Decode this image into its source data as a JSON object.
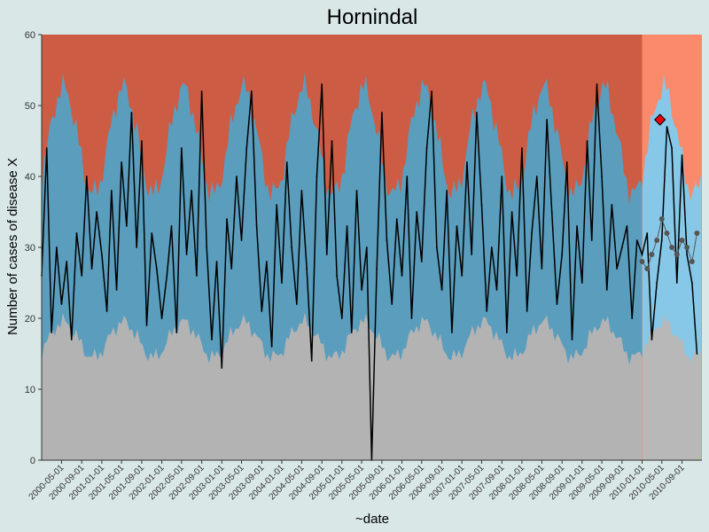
{
  "chart_data": {
    "type": "line",
    "title": "Hornindal",
    "xlabel": "~date",
    "ylabel": "Number of cases of disease X",
    "ylim": [
      0,
      60
    ],
    "yticks": [
      0,
      10,
      20,
      30,
      40,
      50,
      60
    ],
    "xlim": [
      "2000-01-01",
      "2010-12-31"
    ],
    "forecast_start": "2010-01-01",
    "xticks": [
      "2000-05-01",
      "2000-09-01",
      "2001-01-01",
      "2001-05-01",
      "2001-09-01",
      "2002-01-01",
      "2002-05-01",
      "2002-09-01",
      "2003-01-01",
      "2003-05-01",
      "2003-09-01",
      "2004-01-01",
      "2004-05-01",
      "2004-09-01",
      "2005-01-01",
      "2005-05-01",
      "2005-09-01",
      "2006-01-01",
      "2006-05-01",
      "2006-09-01",
      "2007-01-01",
      "2007-05-01",
      "2007-09-01",
      "2008-01-01",
      "2008-05-01",
      "2008-09-01",
      "2009-01-01",
      "2009-05-01",
      "2009-09-01",
      "2010-01-01",
      "2010-05-01",
      "2010-09-01"
    ],
    "colors": {
      "background": "#d9e7e7",
      "low_band": "#b3b3b3",
      "normal_band": "#5a9dbd",
      "high_band": "#cd5c44",
      "forecast_low_band": "#b8b8b8",
      "forecast_normal_band": "#87c8e8",
      "forecast_high_band": "#f98b6c",
      "observed_line": "#000000",
      "baseline_points": "#555555",
      "alert_marker": "#e8000b"
    },
    "series": [
      {
        "role": "observed",
        "x": [
          "2000-01-01",
          "2000-02-01",
          "2000-03-01",
          "2000-04-01",
          "2000-05-01",
          "2000-06-01",
          "2000-07-01",
          "2000-08-01",
          "2000-09-01",
          "2000-10-01",
          "2000-11-01",
          "2000-12-01",
          "2001-01-01",
          "2001-02-01",
          "2001-03-01",
          "2001-04-01",
          "2001-05-01",
          "2001-06-01",
          "2001-07-01",
          "2001-08-01",
          "2001-09-01",
          "2001-10-01",
          "2001-11-01",
          "2001-12-01",
          "2002-01-01",
          "2002-02-01",
          "2002-03-01",
          "2002-04-01",
          "2002-05-01",
          "2002-06-01",
          "2002-07-01",
          "2002-08-01",
          "2002-09-01",
          "2002-10-01",
          "2002-11-01",
          "2002-12-01",
          "2003-01-01",
          "2003-02-01",
          "2003-03-01",
          "2003-04-01",
          "2003-05-01",
          "2003-06-01",
          "2003-07-01",
          "2003-08-01",
          "2003-09-01",
          "2003-10-01",
          "2003-11-01",
          "2003-12-01",
          "2004-01-01",
          "2004-02-01",
          "2004-03-01",
          "2004-04-01",
          "2004-05-01",
          "2004-06-01",
          "2004-07-01",
          "2004-08-01",
          "2004-09-01",
          "2004-10-01",
          "2004-11-01",
          "2004-12-01",
          "2005-01-01",
          "2005-02-01",
          "2005-03-01",
          "2005-04-01",
          "2005-05-01",
          "2005-06-01",
          "2005-07-01",
          "2005-08-01",
          "2005-09-01",
          "2005-10-01",
          "2005-11-01",
          "2005-12-01",
          "2006-01-01",
          "2006-02-01",
          "2006-03-01",
          "2006-04-01",
          "2006-05-01",
          "2006-06-01",
          "2006-07-01",
          "2006-08-01",
          "2006-09-01",
          "2006-10-01",
          "2006-11-01",
          "2006-12-01",
          "2007-01-01",
          "2007-02-01",
          "2007-03-01",
          "2007-04-01",
          "2007-05-01",
          "2007-06-01",
          "2007-07-01",
          "2007-08-01",
          "2007-09-01",
          "2007-10-01",
          "2007-11-01",
          "2007-12-01",
          "2008-01-01",
          "2008-02-01",
          "2008-03-01",
          "2008-04-01",
          "2008-05-01",
          "2008-06-01",
          "2008-07-01",
          "2008-08-01",
          "2008-09-01",
          "2008-10-01",
          "2008-11-01",
          "2008-12-01",
          "2009-01-01",
          "2009-02-01",
          "2009-03-01",
          "2009-04-01",
          "2009-05-01",
          "2009-06-01",
          "2009-07-01",
          "2009-08-01",
          "2009-09-01",
          "2009-10-01",
          "2009-11-01",
          "2009-12-01",
          "2010-01-01",
          "2010-02-01",
          "2010-03-01",
          "2010-04-01",
          "2010-05-01",
          "2010-06-01",
          "2010-07-01",
          "2010-08-01",
          "2010-09-01",
          "2010-10-01",
          "2010-11-01",
          "2010-12-01"
        ],
        "y": [
          26,
          44,
          18,
          30,
          22,
          28,
          17,
          32,
          26,
          40,
          27,
          35,
          29,
          21,
          38,
          24,
          42,
          33,
          49,
          30,
          45,
          19,
          32,
          27,
          20,
          26,
          33,
          18,
          44,
          29,
          38,
          26,
          52,
          30,
          17,
          28,
          13,
          34,
          27,
          40,
          31,
          44,
          52,
          33,
          21,
          28,
          16,
          36,
          25,
          42,
          30,
          22,
          38,
          27,
          14,
          40,
          53,
          29,
          45,
          26,
          20,
          33,
          18,
          38,
          24,
          30,
          0,
          27,
          49,
          31,
          22,
          34,
          26,
          40,
          20,
          35,
          28,
          44,
          52,
          30,
          24,
          38,
          18,
          33,
          26,
          42,
          29,
          49,
          36,
          21,
          30,
          24,
          40,
          18,
          35,
          26,
          44,
          21,
          32,
          40,
          27,
          48,
          35,
          22,
          29,
          42,
          17,
          33,
          25,
          45,
          31,
          53,
          40,
          24,
          36,
          27,
          30,
          33,
          20,
          31,
          29,
          32,
          17,
          25,
          31,
          47,
          44,
          25,
          43,
          29,
          25,
          15
        ],
        "name": ""
      },
      {
        "role": "baseline_points",
        "x": [
          "2010-01-01",
          "2010-02-01",
          "2010-03-01",
          "2010-04-01",
          "2010-05-01",
          "2010-06-01",
          "2010-07-01",
          "2010-08-01",
          "2010-09-01",
          "2010-10-01",
          "2010-11-01",
          "2010-12-01"
        ],
        "y": [
          28,
          27,
          29,
          31,
          34,
          32,
          30,
          29,
          31,
          30,
          28,
          32
        ],
        "name": ""
      },
      {
        "role": "alert",
        "x": [
          "2010-04-20"
        ],
        "y": [
          48
        ],
        "name": ""
      }
    ]
  }
}
